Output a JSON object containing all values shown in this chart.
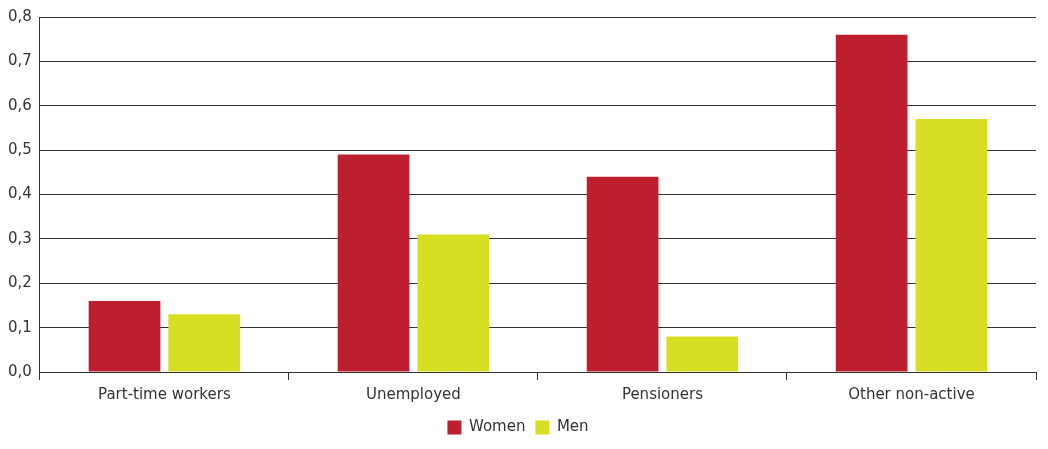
{
  "chart_data": {
    "type": "bar",
    "categories": [
      "Part-time workers",
      "Unemployed",
      "Pensioners",
      "Other non-active"
    ],
    "series": [
      {
        "name": "Women",
        "color": "#be1e2d",
        "values": [
          0.16,
          0.49,
          0.44,
          0.76
        ]
      },
      {
        "name": "Men",
        "color": "#d7df23",
        "values": [
          0.13,
          0.31,
          0.08,
          0.57
        ]
      }
    ],
    "ylim": [
      0,
      0.8
    ],
    "yticks": [
      {
        "value": 0,
        "label": "0,0"
      },
      {
        "value": 0.1,
        "label": "0,1"
      },
      {
        "value": 0.2,
        "label": "0,2"
      },
      {
        "value": 0.3,
        "label": "0,3"
      },
      {
        "value": 0.4,
        "label": "0,4"
      },
      {
        "value": 0.5,
        "label": "0,5"
      },
      {
        "value": 0.6,
        "label": "0,6"
      },
      {
        "value": 0.7,
        "label": "0,7"
      },
      {
        "value": 0.8,
        "label": "0,8"
      }
    ],
    "grid": "y",
    "legend": "bottom"
  }
}
